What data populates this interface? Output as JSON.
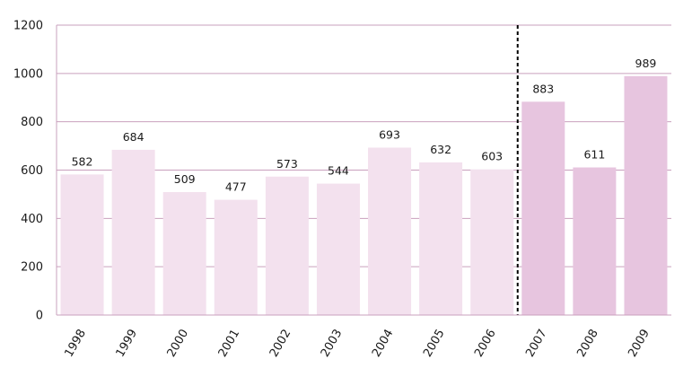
{
  "chart_data": {
    "type": "bar",
    "title": "",
    "xlabel": "",
    "ylabel": "",
    "categories": [
      "1998",
      "1999",
      "2000",
      "2001",
      "2002",
      "2003",
      "2004",
      "2005",
      "2006",
      "2007",
      "2008",
      "2009"
    ],
    "values": [
      582,
      684,
      509,
      477,
      573,
      544,
      693,
      632,
      603,
      883,
      611,
      989
    ],
    "data_labels": [
      "582",
      "684",
      "509",
      "477",
      "573",
      "544",
      "693",
      "632",
      "603",
      "883",
      "611",
      "989"
    ],
    "ylim": [
      0,
      1200
    ],
    "yticks": [
      0,
      200,
      400,
      600,
      800,
      1000,
      1200
    ],
    "ytick_labels": [
      "0",
      "200",
      "400",
      "600",
      "800",
      "1000",
      "1200"
    ],
    "grid": true,
    "divider_after_category": "2006",
    "colors": {
      "bar_light": "#f3e1ee",
      "bar_dark": "#e7c5df",
      "gridline": "#c9a0bd",
      "axis": "#c9a0bd",
      "divider": "#000000",
      "text": "#1a1a1a"
    },
    "dark_from_category": "2007"
  }
}
